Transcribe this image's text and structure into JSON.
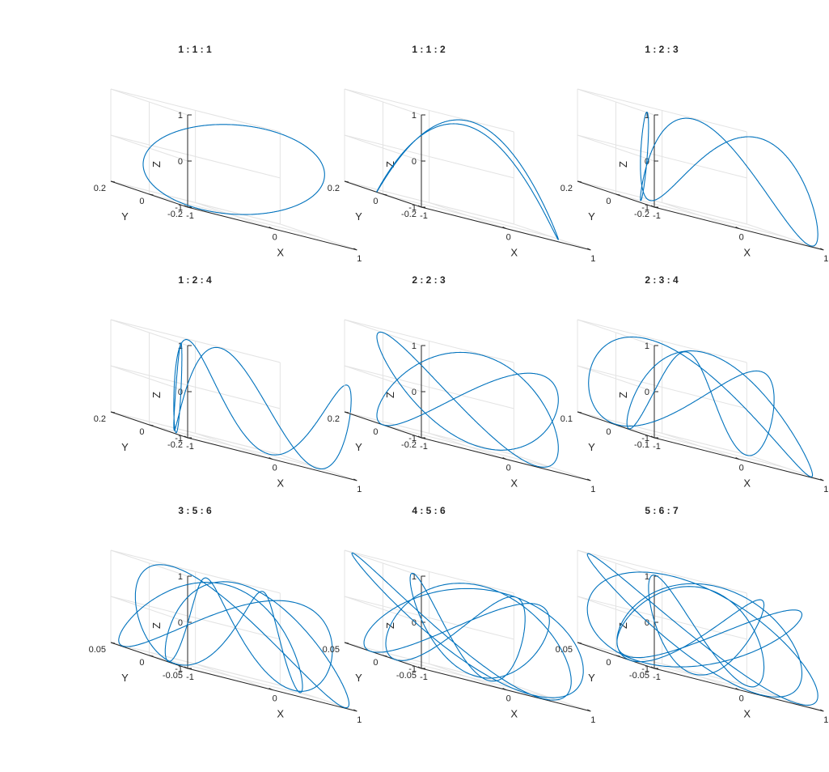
{
  "chart_data": [
    {
      "type": "line3d",
      "title": "1 : 1 : 1",
      "ratio": [
        1,
        1,
        1
      ],
      "xlabel": "X",
      "ylabel": "Y",
      "zlabel": "Z",
      "xlim": [
        -1,
        1
      ],
      "ylim": [
        -0.3,
        0.3
      ],
      "zlim": [
        -1,
        1
      ],
      "xticks": [
        "-1",
        "0",
        "1"
      ],
      "yticks": [
        "-0.2",
        "0",
        "0.2"
      ],
      "zticks": [
        "-1",
        "0",
        "1"
      ],
      "grid": true
    },
    {
      "type": "line3d",
      "title": "1 : 1 : 2",
      "ratio": [
        1,
        1,
        2
      ],
      "xlabel": "X",
      "ylabel": "Y",
      "zlabel": "Z",
      "xlim": [
        -1,
        1
      ],
      "ylim": [
        -0.3,
        0.3
      ],
      "zlim": [
        -1,
        1
      ],
      "xticks": [
        "-1",
        "0",
        "1"
      ],
      "yticks": [
        "-0.2",
        "0",
        "0.2"
      ],
      "zticks": [
        "-1",
        "0",
        "1"
      ],
      "grid": true
    },
    {
      "type": "line3d",
      "title": "1 : 2 : 3",
      "ratio": [
        1,
        2,
        3
      ],
      "xlabel": "X",
      "ylabel": "Y",
      "zlabel": "Z",
      "xlim": [
        -1,
        1
      ],
      "ylim": [
        -0.2,
        0.2
      ],
      "zlim": [
        -1,
        1
      ],
      "xticks": [
        "-1",
        "0",
        "1"
      ],
      "yticks": [
        "-0.2",
        "0",
        "0.2"
      ],
      "zticks": [
        "-1",
        "0",
        "1"
      ],
      "grid": true
    },
    {
      "type": "line3d",
      "title": "1 : 2 : 4",
      "ratio": [
        1,
        2,
        4
      ],
      "xlabel": "X",
      "ylabel": "Y",
      "zlabel": "Z",
      "xlim": [
        -1,
        1
      ],
      "ylim": [
        -0.3,
        0.3
      ],
      "zlim": [
        -1,
        1
      ],
      "xticks": [
        "-1",
        "0",
        "1"
      ],
      "yticks": [
        "-0.2",
        "0",
        "0.2"
      ],
      "zticks": [
        "-1",
        "0",
        "1"
      ],
      "grid": true
    },
    {
      "type": "line3d",
      "title": "2 : 2 : 3",
      "ratio": [
        2,
        2,
        3
      ],
      "xlabel": "X",
      "ylabel": "Y",
      "zlabel": "Z",
      "xlim": [
        -1,
        1
      ],
      "ylim": [
        -0.3,
        0.3
      ],
      "zlim": [
        -1,
        1
      ],
      "xticks": [
        "-1",
        "0",
        "1"
      ],
      "yticks": [
        "-0.2",
        "0",
        "0.2"
      ],
      "zticks": [
        "-1",
        "0",
        "1"
      ],
      "grid": true
    },
    {
      "type": "line3d",
      "title": "2 : 3 : 4",
      "ratio": [
        2,
        3,
        4
      ],
      "xlabel": "X",
      "ylabel": "Y",
      "zlabel": "Z",
      "xlim": [
        -1,
        1
      ],
      "ylim": [
        -0.1,
        0.1
      ],
      "zlim": [
        -1,
        1
      ],
      "xticks": [
        "-1",
        "0",
        "1"
      ],
      "yticks": [
        "-0.1",
        "0",
        "0.1"
      ],
      "zticks": [
        "-1",
        "0",
        "1"
      ],
      "grid": true
    },
    {
      "type": "line3d",
      "title": "3 : 5 : 6",
      "ratio": [
        3,
        5,
        6
      ],
      "xlabel": "X",
      "ylabel": "Y",
      "zlabel": "Z",
      "xlim": [
        -1,
        1
      ],
      "ylim": [
        -0.07,
        0.07
      ],
      "zlim": [
        -1,
        1
      ],
      "xticks": [
        "-1",
        "0",
        "1"
      ],
      "yticks": [
        "-0.05",
        "0",
        "0.05"
      ],
      "zticks": [
        "-1",
        "0",
        "1"
      ],
      "grid": true
    },
    {
      "type": "line3d",
      "title": "4 : 5 : 6",
      "ratio": [
        4,
        5,
        6
      ],
      "xlabel": "X",
      "ylabel": "Y",
      "zlabel": "Z",
      "xlim": [
        -1,
        1
      ],
      "ylim": [
        -0.07,
        0.07
      ],
      "zlim": [
        -1,
        1
      ],
      "xticks": [
        "-1",
        "0",
        "1"
      ],
      "yticks": [
        "-0.05",
        "0",
        "0.05"
      ],
      "zticks": [
        "-1",
        "0",
        "1"
      ],
      "grid": true
    },
    {
      "type": "line3d",
      "title": "5 : 6 : 7",
      "ratio": [
        5,
        6,
        7
      ],
      "xlabel": "X",
      "ylabel": "Y",
      "zlabel": "Z",
      "xlim": [
        -1,
        1
      ],
      "ylim": [
        -0.07,
        0.07
      ],
      "zlim": [
        -1,
        1
      ],
      "xticks": [
        "-1",
        "0",
        "1"
      ],
      "yticks": [
        "-0.05",
        "0",
        "0.05"
      ],
      "zticks": [
        "-1",
        "0",
        "1"
      ],
      "grid": true
    }
  ],
  "colors": {
    "line": "#0072BD",
    "axis": "#262626",
    "grid": "#e3e3e3"
  }
}
